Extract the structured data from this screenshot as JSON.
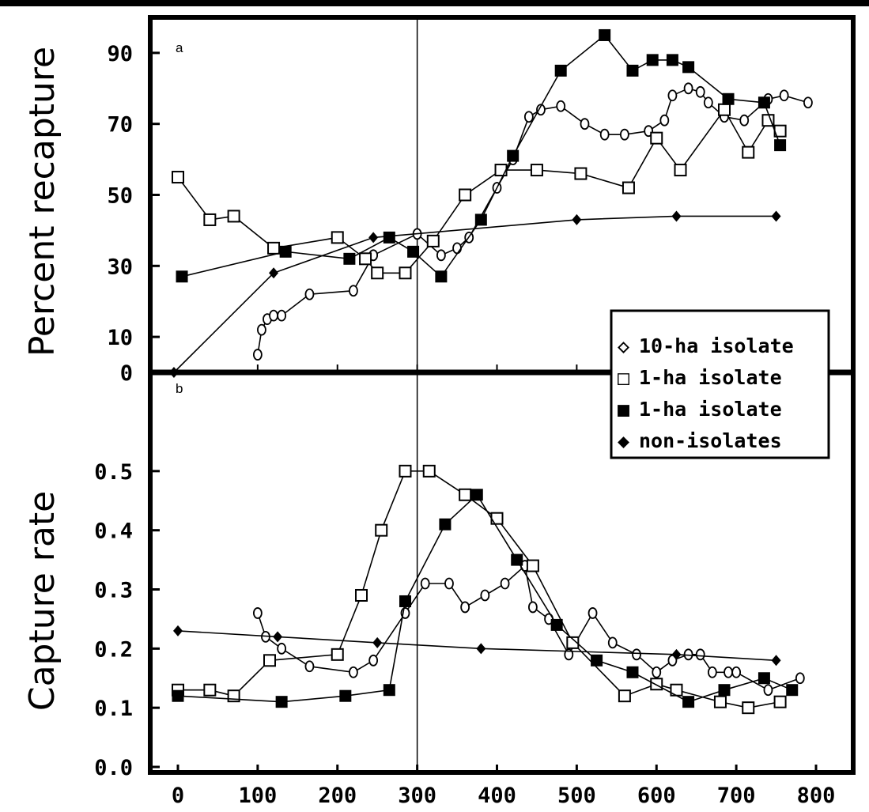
{
  "chart_data": [
    {
      "panel": "a",
      "type": "line",
      "ylabel": "Percent recapture",
      "ylim": [
        0,
        100
      ],
      "yticks": [
        "0",
        "10",
        "30",
        "50",
        "70",
        "90"
      ],
      "ytick_values": [
        0,
        10,
        30,
        50,
        70,
        90
      ],
      "xlim": [
        -20,
        840
      ],
      "reference_line_x": 300,
      "series": [
        {
          "name": "10-ha isolate",
          "marker": "open-diamond",
          "x": [
            100,
            105,
            112,
            120,
            130,
            165,
            220,
            245,
            300,
            330,
            350,
            365,
            400,
            420,
            440,
            455,
            480,
            510,
            535,
            560,
            590,
            610,
            620,
            640,
            655,
            665,
            685,
            710,
            740,
            760,
            790
          ],
          "y": [
            5,
            12,
            15,
            16,
            16,
            22,
            23,
            33,
            39,
            33,
            35,
            38,
            52,
            60,
            72,
            74,
            75,
            70,
            67,
            67,
            68,
            71,
            78,
            80,
            79,
            76,
            72,
            71,
            77,
            78,
            76
          ]
        },
        {
          "name": "1-ha isolate",
          "marker": "open-square",
          "x": [
            0,
            40,
            70,
            120,
            200,
            235,
            250,
            285,
            320,
            360,
            405,
            450,
            505,
            565,
            600,
            630,
            685,
            715,
            740,
            755
          ],
          "y": [
            55,
            43,
            44,
            35,
            38,
            32,
            28,
            28,
            37,
            50,
            57,
            57,
            56,
            52,
            66,
            57,
            74,
            62,
            71,
            68
          ],
          "line_order": [
            0,
            1,
            2,
            3,
            4,
            5,
            6,
            7,
            8,
            9,
            10,
            11,
            12,
            13,
            14,
            15,
            16,
            17,
            18,
            19
          ]
        },
        {
          "name": "1-ha isolate",
          "marker": "filled-square",
          "x": [
            5,
            135,
            215,
            265,
            295,
            330,
            380,
            420,
            480,
            535,
            570,
            595,
            620,
            640,
            690,
            735,
            755
          ],
          "y": [
            27,
            34,
            32,
            38,
            34,
            27,
            43,
            61,
            85,
            95,
            85,
            88,
            88,
            86,
            77,
            76,
            64
          ]
        },
        {
          "name": "non-isolates",
          "marker": "filled-diamond",
          "x": [
            -5,
            120,
            245,
            500,
            625,
            750
          ],
          "y": [
            0,
            28,
            38,
            43,
            44,
            44
          ]
        }
      ]
    },
    {
      "panel": "b",
      "type": "line",
      "ylabel": "Capture rate",
      "ylim": [
        0,
        0.6
      ],
      "yticks": [
        "0.0",
        "0.1",
        "0.2",
        "0.3",
        "0.4",
        "0.5"
      ],
      "ytick_values": [
        0,
        0.1,
        0.2,
        0.3,
        0.4,
        0.5
      ],
      "xlim": [
        -20,
        840
      ],
      "xticks": [
        "0",
        "100",
        "200",
        "300",
        "400",
        "500",
        "600",
        "700",
        "800"
      ],
      "xtick_values": [
        0,
        100,
        200,
        300,
        400,
        500,
        600,
        700,
        800
      ],
      "reference_line_x": 300,
      "series": [
        {
          "name": "10-ha isolate",
          "marker": "open-diamond",
          "x": [
            100,
            110,
            130,
            165,
            220,
            245,
            285,
            310,
            340,
            360,
            385,
            410,
            435,
            445,
            465,
            490,
            520,
            545,
            575,
            600,
            620,
            640,
            655,
            670,
            690,
            700,
            740,
            780
          ],
          "y": [
            0.26,
            0.22,
            0.2,
            0.17,
            0.16,
            0.18,
            0.26,
            0.31,
            0.31,
            0.27,
            0.29,
            0.31,
            0.34,
            0.27,
            0.25,
            0.19,
            0.26,
            0.21,
            0.19,
            0.16,
            0.18,
            0.19,
            0.19,
            0.16,
            0.16,
            0.16,
            0.13,
            0.15
          ]
        },
        {
          "name": "1-ha isolate",
          "marker": "open-square",
          "x": [
            0,
            40,
            70,
            115,
            200,
            230,
            255,
            285,
            315,
            360,
            400,
            445,
            495,
            560,
            600,
            625,
            680,
            715,
            755
          ],
          "y": [
            0.13,
            0.13,
            0.12,
            0.18,
            0.19,
            0.29,
            0.4,
            0.5,
            0.5,
            0.46,
            0.42,
            0.34,
            0.21,
            0.12,
            0.14,
            0.13,
            0.11,
            0.1,
            0.11
          ]
        },
        {
          "name": "1-ha isolate",
          "marker": "filled-square",
          "x": [
            0,
            130,
            210,
            265,
            285,
            335,
            375,
            425,
            475,
            525,
            570,
            640,
            685,
            735,
            770
          ],
          "y": [
            0.12,
            0.11,
            0.12,
            0.13,
            0.28,
            0.41,
            0.46,
            0.35,
            0.24,
            0.18,
            0.16,
            0.11,
            0.13,
            0.15,
            0.13
          ]
        },
        {
          "name": "non-isolates",
          "marker": "filled-diamond",
          "x": [
            0,
            125,
            250,
            380,
            625,
            750
          ],
          "y": [
            0.23,
            0.22,
            0.21,
            0.2,
            0.19,
            0.18
          ]
        }
      ]
    }
  ],
  "legend": {
    "placement": "bottom-right of panel a",
    "entries": [
      {
        "symbol": "◇",
        "label": "10-ha isolate"
      },
      {
        "symbol": "□",
        "label": "1-ha isolate"
      },
      {
        "symbol": "■",
        "label": "1-ha isolate"
      },
      {
        "symbol": "◆",
        "label": "non-isolates"
      }
    ]
  }
}
